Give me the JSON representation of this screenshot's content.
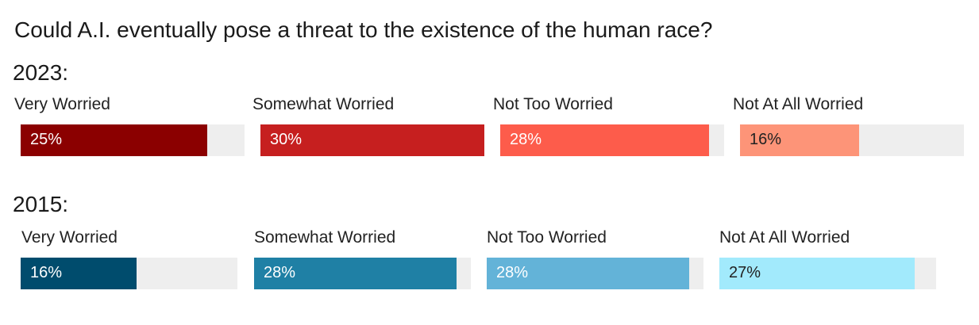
{
  "title": "Could A.I. eventually pose a threat to the existence of the human race?",
  "chart_data": [
    {
      "type": "bar",
      "title": "2023:",
      "categories": [
        "Very Worried",
        "Somewhat Worried",
        "Not Too Worried",
        "Not At All Worried"
      ],
      "values": [
        25,
        30,
        28,
        16
      ],
      "value_labels": [
        "25%",
        "30%",
        "28%",
        "16%"
      ],
      "colors": [
        "#8b0000",
        "#c61f1f",
        "#fd5c4b",
        "#fd9478"
      ],
      "label_colors": [
        "#ffffff",
        "#ffffff",
        "#ffffff",
        "#222222"
      ],
      "ylim": [
        0,
        30
      ]
    },
    {
      "type": "bar",
      "title": "2015:",
      "categories": [
        "Very Worried",
        "Somewhat Worried",
        "Not Too Worried",
        "Not At All Worried"
      ],
      "values": [
        16,
        28,
        28,
        27
      ],
      "value_labels": [
        "16%",
        "28%",
        "28%",
        "27%"
      ],
      "colors": [
        "#004c6d",
        "#1f80a5",
        "#63b3d8",
        "#a2eafc"
      ],
      "label_colors": [
        "#ffffff",
        "#ffffff",
        "#ffffff",
        "#222222"
      ],
      "ylim": [
        0,
        30
      ]
    }
  ]
}
